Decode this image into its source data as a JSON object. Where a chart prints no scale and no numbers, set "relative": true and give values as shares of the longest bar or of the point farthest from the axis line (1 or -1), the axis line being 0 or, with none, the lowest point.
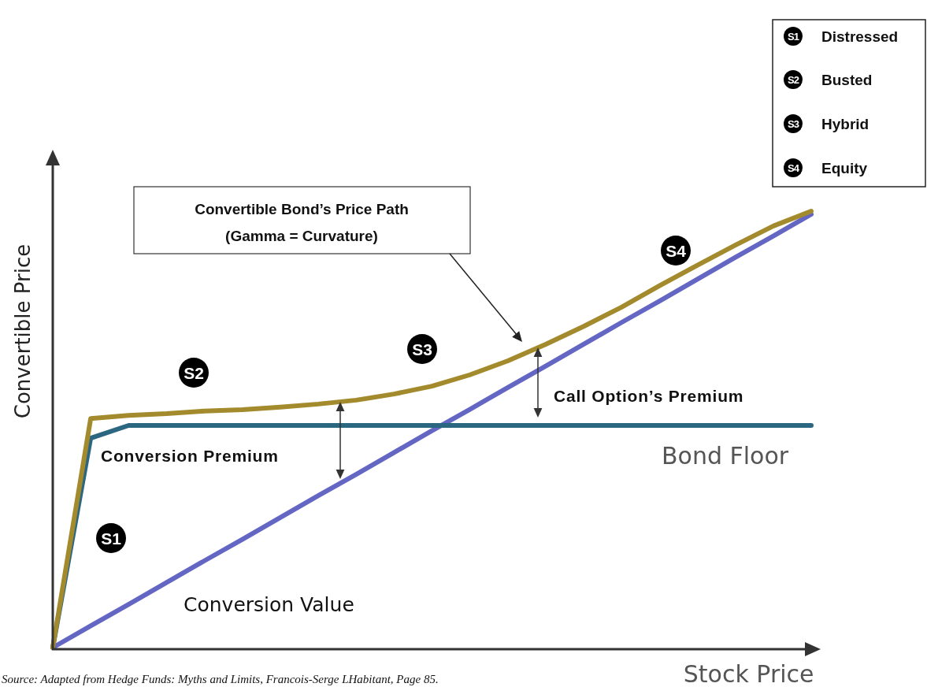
{
  "chart_data": {
    "type": "line",
    "relative": true,
    "xlabel": "Stock Price",
    "ylabel": "Convertible Price",
    "categories": [
      null,
      null,
      null,
      null,
      null,
      null,
      null,
      null,
      null,
      null,
      null,
      null,
      null,
      null,
      null,
      null,
      null,
      null,
      null,
      null,
      null
    ],
    "series": [
      {
        "name": "Conversion Value",
        "color": "#6466c4",
        "values": [
          0,
          0.05,
          0.099,
          0.149,
          0.199,
          0.248,
          0.298,
          0.348,
          0.397,
          0.447,
          0.497,
          0.546,
          0.596,
          0.645,
          0.695,
          0.745,
          0.794,
          0.844,
          0.894,
          0.943,
          0.993
        ]
      },
      {
        "name": "Bond Floor",
        "color": "#2c6781",
        "values": [
          0,
          0.48,
          0.509,
          0.509,
          0.509,
          0.509,
          0.509,
          0.509,
          0.509,
          0.509,
          0.509,
          0.509,
          0.509,
          0.509,
          0.509,
          0.509,
          0.509,
          0.509,
          0.509,
          0.509,
          0.509
        ]
      },
      {
        "color": "#a38a2c",
        "values": [
          0,
          0.525,
          0.532,
          0.536,
          0.542,
          0.545,
          0.551,
          0.558,
          0.567,
          0.581,
          0.599,
          0.625,
          0.657,
          0.695,
          0.736,
          0.78,
          0.829,
          0.876,
          0.922,
          0.966,
          1.0
        ]
      }
    ],
    "annotations": [
      "Convertible Bond’s Price Path",
      "(Gamma = Curvature)",
      "Call Option’s Premium",
      "Conversion Premium",
      "Source: Adapted from Hedge Funds: Myths and Limits, Francois-Serge LHabitant, Page 85.",
      "S1",
      "S2",
      "S3",
      "S4",
      "S1",
      "Distressed",
      "S2",
      "Busted",
      "S3",
      "Hybrid",
      "S4",
      "Equity"
    ]
  }
}
